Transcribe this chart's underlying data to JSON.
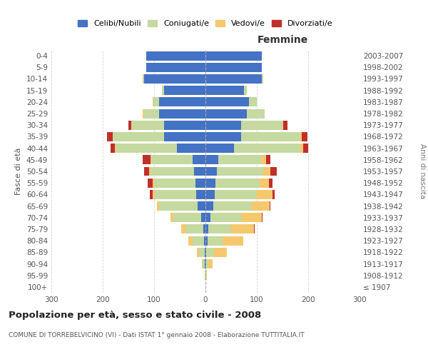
{
  "age_groups": [
    "100+",
    "95-99",
    "90-94",
    "85-89",
    "80-84",
    "75-79",
    "70-74",
    "65-69",
    "60-64",
    "55-59",
    "50-54",
    "45-49",
    "40-44",
    "35-39",
    "30-34",
    "25-29",
    "20-24",
    "15-19",
    "10-14",
    "5-9",
    "0-4"
  ],
  "birth_years": [
    "≤ 1907",
    "1908-1912",
    "1913-1917",
    "1918-1922",
    "1923-1927",
    "1928-1932",
    "1933-1937",
    "1938-1942",
    "1943-1947",
    "1948-1952",
    "1953-1957",
    "1958-1962",
    "1963-1967",
    "1968-1972",
    "1973-1977",
    "1978-1982",
    "1983-1987",
    "1988-1992",
    "1993-1997",
    "1998-2002",
    "2003-2007"
  ],
  "male_celibi": [
    0,
    0,
    1,
    2,
    3,
    4,
    8,
    15,
    18,
    20,
    22,
    25,
    55,
    80,
    80,
    90,
    90,
    80,
    120,
    115,
    115
  ],
  "male_coniugati": [
    0,
    1,
    4,
    10,
    22,
    35,
    55,
    75,
    80,
    80,
    85,
    80,
    120,
    100,
    65,
    30,
    12,
    5,
    2,
    0,
    0
  ],
  "male_vedovi": [
    0,
    0,
    2,
    5,
    8,
    8,
    5,
    5,
    5,
    3,
    3,
    2,
    2,
    1,
    0,
    2,
    1,
    0,
    0,
    0,
    0
  ],
  "male_divorziati": [
    0,
    0,
    0,
    0,
    0,
    0,
    0,
    0,
    5,
    10,
    10,
    15,
    8,
    10,
    5,
    0,
    0,
    0,
    0,
    0,
    0
  ],
  "female_celibi": [
    0,
    0,
    1,
    2,
    4,
    5,
    10,
    15,
    18,
    20,
    22,
    25,
    55,
    70,
    70,
    80,
    85,
    75,
    110,
    110,
    110
  ],
  "female_coniugati": [
    0,
    1,
    5,
    15,
    30,
    45,
    60,
    75,
    82,
    85,
    90,
    85,
    130,
    115,
    80,
    35,
    15,
    5,
    2,
    0,
    0
  ],
  "female_vedovi": [
    0,
    2,
    8,
    25,
    40,
    45,
    40,
    35,
    30,
    18,
    15,
    8,
    5,
    3,
    2,
    0,
    0,
    0,
    0,
    0,
    0
  ],
  "female_divorziati": [
    0,
    0,
    0,
    0,
    0,
    1,
    1,
    2,
    5,
    8,
    12,
    8,
    10,
    10,
    8,
    0,
    0,
    0,
    0,
    0,
    0
  ],
  "color_celibi": "#4472c4",
  "color_coniugati": "#c5d9a0",
  "color_vedovi": "#f5c86e",
  "color_divorziati": "#c0302a",
  "xlim": 300,
  "title_main": "Popolazione per età, sesso e stato civile - 2008",
  "title_sub": "COMUNE DI TORREBELVICINO (VI) - Dati ISTAT 1° gennaio 2008 - Elaborazione TUTTITALIA.IT",
  "label_femmine": "Femmine",
  "ylabel_left": "Fasce di età",
  "ylabel_right": "Anni di nascita",
  "legend_celibi": "Celibi/Nubili",
  "legend_coniugati": "Coniugati/e",
  "legend_vedovi": "Vedovi/e",
  "legend_divorziati": "Divorziati/e",
  "bg_color": "#ffffff",
  "grid_color": "#cccccc"
}
